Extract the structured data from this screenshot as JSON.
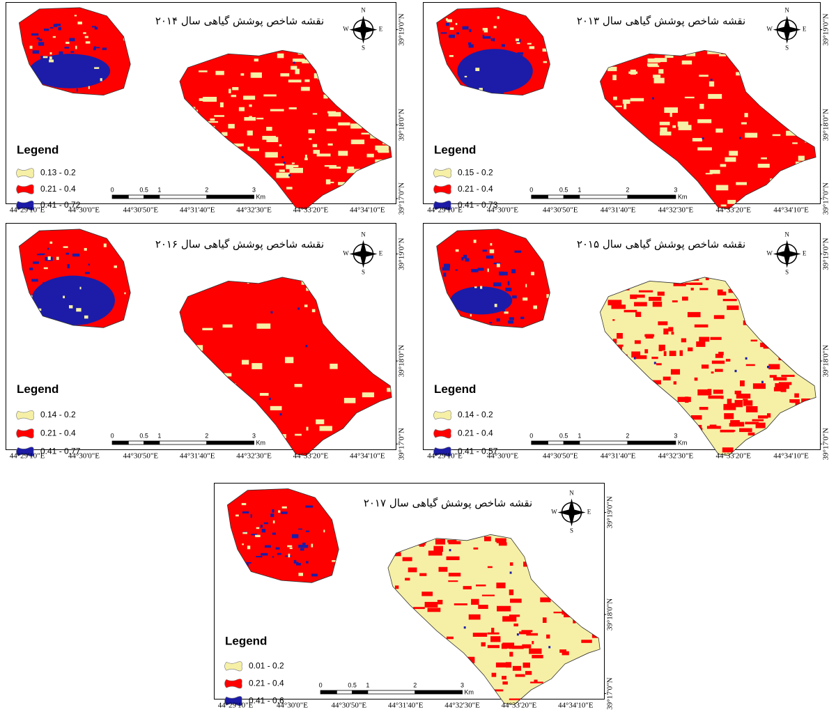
{
  "panels": [
    {
      "title": "نقشه شاخص پوشش گیاهی سال ۲۰۱۴",
      "legend_title": "Legend",
      "legend": [
        {
          "label": "0.13 - 0.2",
          "color": "#f6f0a6"
        },
        {
          "label": "0.21 - 0.4",
          "color": "#ff0000"
        },
        {
          "label": "0.41 - 0.72",
          "color": "#1c1ca8"
        }
      ]
    },
    {
      "title": "نقشه شاخص پوشش گیاهی سال ۲۰۱۳",
      "legend_title": "Legend",
      "legend": [
        {
          "label": "0.15 - 0.2",
          "color": "#f6f0a6"
        },
        {
          "label": "0.21 - 0.4",
          "color": "#ff0000"
        },
        {
          "label": "0.41 - 0.73",
          "color": "#1c1ca8"
        }
      ]
    },
    {
      "title": "نقشه شاخص پوشش گیاهی سال ۲۰۱۶",
      "legend_title": "Legend",
      "legend": [
        {
          "label": "0.14 - 0.2",
          "color": "#f6f0a6"
        },
        {
          "label": "0.21 - 0.4",
          "color": "#ff0000"
        },
        {
          "label": "0.41 - 0.77",
          "color": "#1c1ca8"
        }
      ]
    },
    {
      "title": "نقشه شاخص پوشش گیاهی سال ۲۰۱۵",
      "legend_title": "Legend",
      "legend": [
        {
          "label": "0.14 - 0.2",
          "color": "#f6f0a6"
        },
        {
          "label": "0.21 - 0.4",
          "color": "#ff0000"
        },
        {
          "label": "0.41 - 0.57",
          "color": "#1c1ca8"
        }
      ]
    },
    {
      "title": "نقشه شاخص پوشش گیاهی سال ۲۰۱۷",
      "legend_title": "Legend",
      "legend": [
        {
          "label": "0.01 - 0.2",
          "color": "#f6f0a6"
        },
        {
          "label": "0.21 - 0.4",
          "color": "#ff0000"
        },
        {
          "label": "0.41 - 0.6",
          "color": "#1c1ca8"
        }
      ]
    }
  ],
  "x_labels": [
    "44°29'10\"E",
    "44°30'0\"E",
    "44°30'50\"E",
    "44°31'40\"E",
    "44°32'30\"E",
    "44°33'20\"E",
    "44°34'10\"E"
  ],
  "y_labels": [
    "39°19'0\"N",
    "39°18'0\"N",
    "39°17'0\"N"
  ],
  "scale_labels": [
    "0",
    "0.5",
    "1",
    "2",
    "3"
  ],
  "scale_unit": "Km",
  "compass": {
    "n": "N",
    "s": "S",
    "w": "W",
    "e": "E"
  }
}
